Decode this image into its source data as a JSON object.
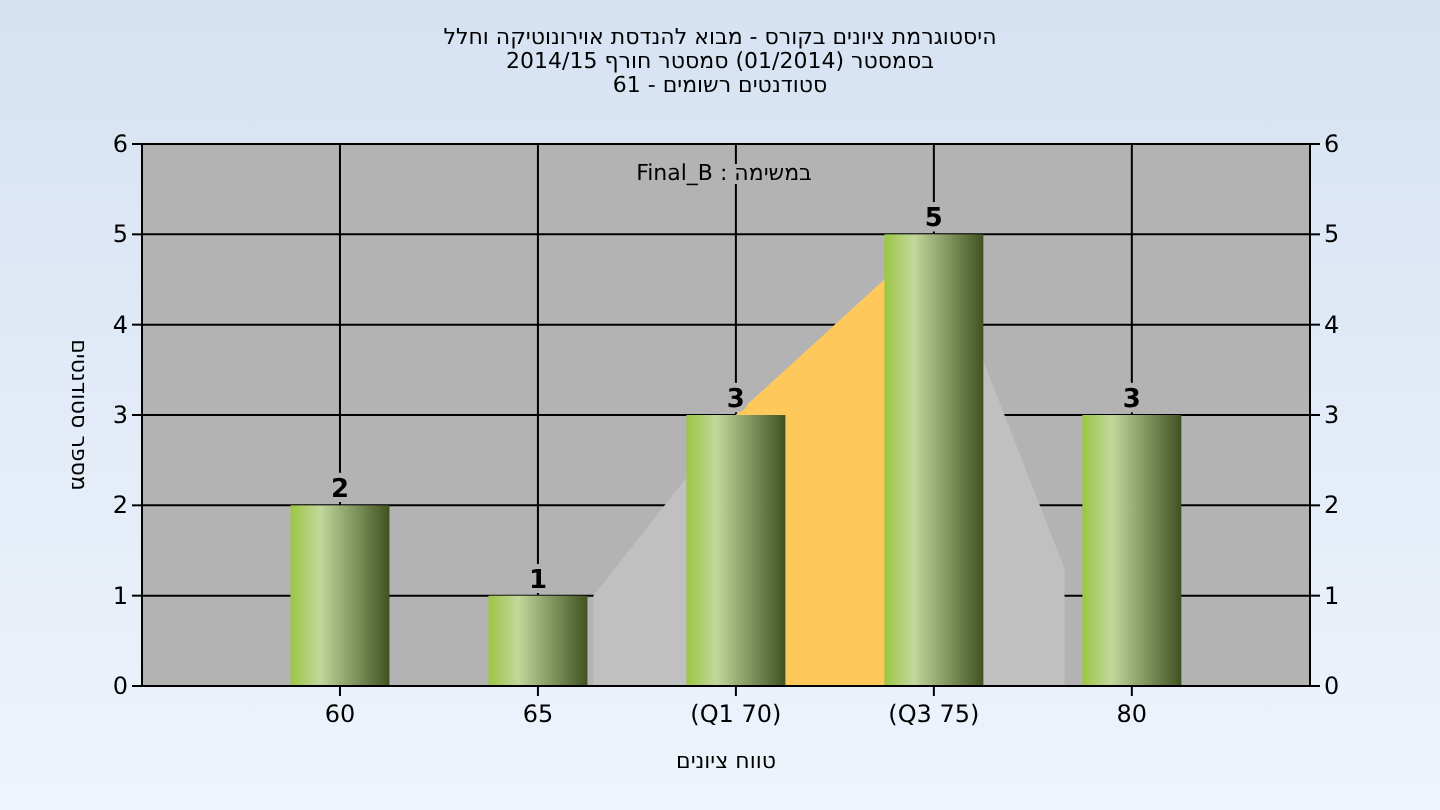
{
  "chart_data": {
    "type": "bar",
    "title": "היסטוגרמת ציונים בקורס - מבוא להנדסת אוירונוטיקה וחלל\nבסמסטר  (01/2014)  סמסטר חורף 2014/15\nסטודנטים רשומים - 61",
    "xlabel": "טווח ציונים",
    "ylabel": "מספר סטודנטים",
    "annotations": [
      "במשימה : Final_B"
    ],
    "xlim": [
      55,
      84.5
    ],
    "xticks": [
      60,
      65,
      {
        "value": 70,
        "label": "(Q1 70)"
      },
      {
        "value": 75,
        "label": "(Q3 75)"
      },
      80
    ],
    "ylim": [
      0,
      6
    ],
    "yticks": [
      0,
      1,
      2,
      3,
      4,
      5,
      6
    ],
    "y2lim": [
      0,
      6
    ],
    "y2ticks": [
      0,
      1,
      2,
      3,
      4,
      5,
      6
    ],
    "grid": true,
    "series": [
      {
        "type": "area",
        "color": "#c0c0c0",
        "x": [
          66.4,
          70,
          75,
          78.3
        ],
        "values": [
          1,
          3,
          5,
          1.3
        ]
      },
      {
        "type": "area",
        "color": "#ffc85a",
        "x": [
          70,
          75
        ],
        "values": [
          3,
          5
        ]
      },
      {
        "color": "#8fb64a",
        "x": [
          60,
          65,
          70,
          75,
          80
        ],
        "values": [
          2,
          1,
          3,
          5,
          3
        ],
        "data_labels": true
      }
    ]
  }
}
